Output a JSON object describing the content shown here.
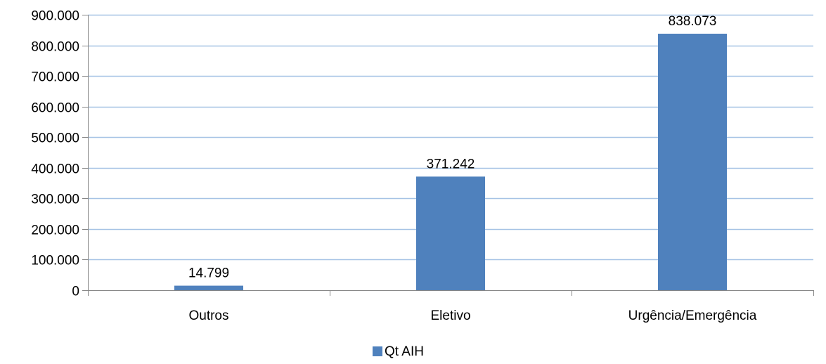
{
  "chart_data": {
    "type": "bar",
    "categories": [
      "Outros",
      "Eletivo",
      "Urgência/Emergência"
    ],
    "series": [
      {
        "name": "Qt AIH",
        "values": [
          14799,
          371242,
          838073
        ],
        "value_labels": [
          "14.799",
          "371.242",
          "838.073"
        ],
        "color": "#4f81bd"
      }
    ],
    "ylim": [
      0,
      900000
    ],
    "y_ticks": [
      0,
      100000,
      200000,
      300000,
      400000,
      500000,
      600000,
      700000,
      800000,
      900000
    ],
    "y_tick_labels": [
      "0",
      "100.000",
      "200.000",
      "300.000",
      "400.000",
      "500.000",
      "600.000",
      "700.000",
      "800.000",
      "900.000"
    ],
    "grid": true,
    "gridline_color": "#a6c3e5",
    "legend_position": "bottom",
    "title": "",
    "xlabel": "",
    "ylabel": ""
  }
}
